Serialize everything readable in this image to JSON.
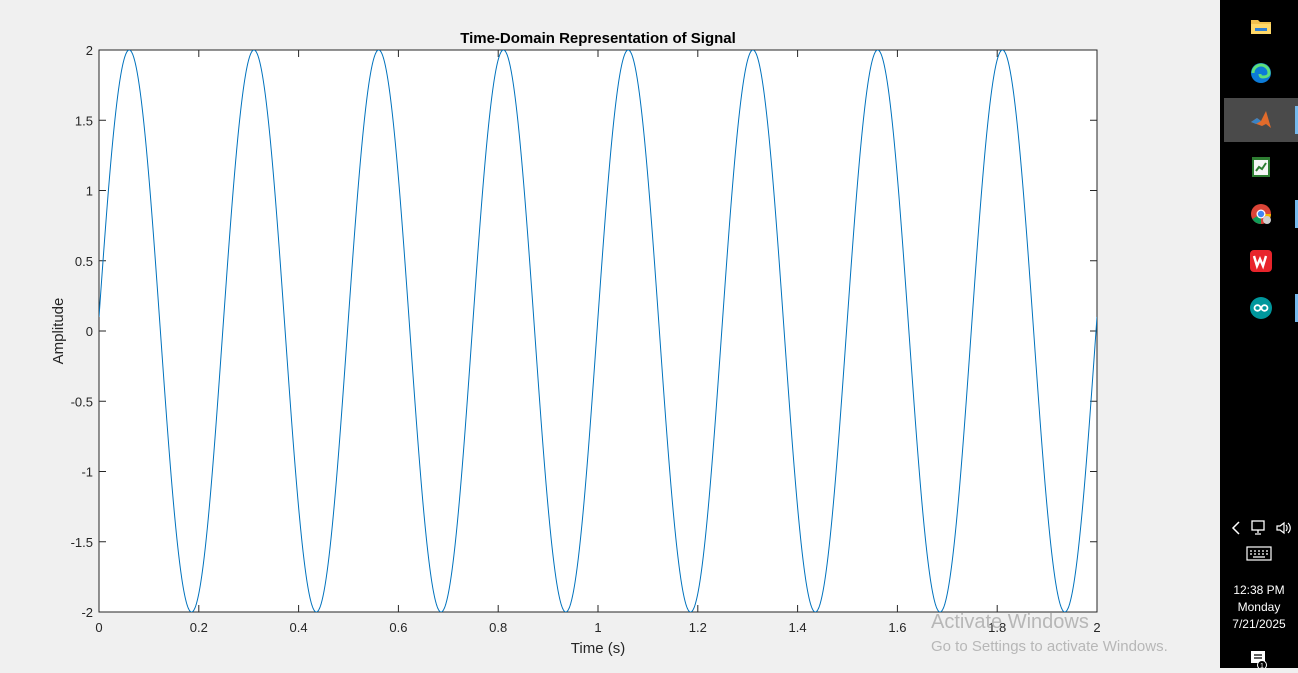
{
  "chart_data": {
    "type": "line",
    "title": "Time-Domain Representation of Signal",
    "xlabel": "Time (s)",
    "ylabel": "Amplitude",
    "xlim": [
      0,
      2
    ],
    "ylim": [
      -2,
      2
    ],
    "xticks": [
      "0",
      "0.2",
      "0.4",
      "0.6",
      "0.8",
      "1",
      "1.2",
      "1.4",
      "1.6",
      "1.8",
      "2"
    ],
    "yticks": [
      "2",
      "1.5",
      "1",
      "0.5",
      "0",
      "-0.5",
      "-1",
      "-1.5",
      "-2"
    ],
    "grid": false,
    "series": [
      {
        "color": "#0072bd",
        "function": "2*sin(2*pi*4*t + 0.05)",
        "amplitude": 2,
        "frequency_hz": 4,
        "phase_rad": 0.05,
        "sample_count": 2000
      }
    ]
  },
  "taskbar": {
    "apps": [
      {
        "name": "file-explorer-icon",
        "active": false,
        "running": false
      },
      {
        "name": "edge-icon",
        "active": false,
        "running": false
      },
      {
        "name": "matlab-icon",
        "active": true,
        "running": true
      },
      {
        "name": "app-icon",
        "active": false,
        "running": false
      },
      {
        "name": "chrome-icon",
        "active": false,
        "running": true
      },
      {
        "name": "wps-office-icon",
        "active": false,
        "running": false
      },
      {
        "name": "arduino-icon",
        "active": false,
        "running": true
      }
    ],
    "time": "12:38 PM",
    "day": "Monday",
    "date": "7/21/2025",
    "notification_count": "1"
  },
  "watermark": {
    "title": "Activate Windows",
    "subtitle": "Go to Settings to activate Windows."
  }
}
